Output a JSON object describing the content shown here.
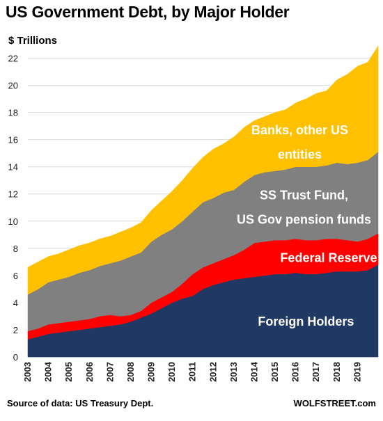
{
  "chart_data": {
    "type": "area",
    "stacked": true,
    "title": "US Government Debt, by Major Holder",
    "ylabel": "$ Trillions",
    "ylim": [
      0,
      23
    ],
    "yticks": [
      0,
      2,
      4,
      6,
      8,
      10,
      12,
      14,
      16,
      18,
      20,
      22
    ],
    "xlim": [
      2003.0,
      2020.0
    ],
    "xticks": [
      "2003",
      "2004",
      "2005",
      "2006",
      "2007",
      "2008",
      "2009",
      "2010",
      "2011",
      "2012",
      "2013",
      "2014",
      "2015",
      "2016",
      "2017",
      "2018",
      "2019"
    ],
    "grid": "horizontal",
    "x": [
      2003.0,
      2003.5,
      2004.0,
      2004.5,
      2005.0,
      2005.5,
      2006.0,
      2006.5,
      2007.0,
      2007.5,
      2008.0,
      2008.5,
      2009.0,
      2009.5,
      2010.0,
      2010.5,
      2011.0,
      2011.5,
      2012.0,
      2012.5,
      2013.0,
      2013.5,
      2014.0,
      2014.5,
      2015.0,
      2015.5,
      2016.0,
      2016.5,
      2017.0,
      2017.5,
      2018.0,
      2018.5,
      2019.0,
      2019.5,
      2020.0
    ],
    "series": [
      {
        "name": "Foreign Holders",
        "color": "#1f3864",
        "values": [
          1.3,
          1.5,
          1.7,
          1.8,
          1.9,
          2.0,
          2.1,
          2.2,
          2.3,
          2.4,
          2.6,
          2.9,
          3.2,
          3.6,
          4.0,
          4.3,
          4.5,
          5.0,
          5.3,
          5.5,
          5.7,
          5.8,
          5.9,
          6.0,
          6.1,
          6.1,
          6.2,
          6.1,
          6.1,
          6.2,
          6.3,
          6.3,
          6.3,
          6.4,
          6.8
        ]
      },
      {
        "name": "Federal Reserve",
        "color": "#ff0000",
        "values": [
          0.6,
          0.6,
          0.7,
          0.7,
          0.7,
          0.7,
          0.7,
          0.8,
          0.8,
          0.6,
          0.5,
          0.5,
          0.8,
          0.8,
          0.8,
          1.1,
          1.6,
          1.6,
          1.6,
          1.7,
          1.8,
          2.1,
          2.5,
          2.5,
          2.5,
          2.5,
          2.5,
          2.5,
          2.5,
          2.5,
          2.4,
          2.3,
          2.2,
          2.3,
          2.3
        ]
      },
      {
        "name": "SS Trust Fund, US Gov pension funds",
        "color": "#808080",
        "values": [
          2.7,
          2.9,
          3.1,
          3.2,
          3.3,
          3.5,
          3.6,
          3.7,
          3.8,
          4.1,
          4.3,
          4.3,
          4.5,
          4.6,
          4.6,
          4.6,
          4.6,
          4.8,
          4.8,
          4.9,
          4.8,
          5.0,
          5.0,
          5.1,
          5.1,
          5.2,
          5.3,
          5.4,
          5.4,
          5.4,
          5.6,
          5.6,
          5.8,
          5.8,
          6.0
        ]
      },
      {
        "name": "Banks, other US entities",
        "color": "#ffc000",
        "values": [
          2.0,
          2.0,
          1.9,
          1.9,
          2.0,
          2.0,
          2.0,
          2.0,
          2.0,
          2.1,
          2.1,
          2.2,
          2.3,
          2.5,
          2.8,
          3.0,
          3.2,
          3.3,
          3.6,
          3.6,
          3.9,
          4.0,
          4.0,
          4.1,
          4.3,
          4.4,
          4.7,
          5.0,
          5.4,
          5.5,
          6.1,
          6.6,
          7.1,
          7.2,
          7.8
        ]
      }
    ],
    "annotations": [
      {
        "series": "Banks, other US entities",
        "lines": [
          "Banks, other US",
          "entities"
        ],
        "color": "#ffffff"
      },
      {
        "series": "SS Trust Fund, US Gov pension funds",
        "lines": [
          "SS Trust Fund,",
          "US Gov pension funds"
        ],
        "color": "#ffffff"
      },
      {
        "series": "Federal Reserve",
        "lines": [
          "Federal Reserve"
        ],
        "color": "#ffffff"
      },
      {
        "series": "Foreign Holders",
        "lines": [
          "Foreign Holders"
        ],
        "color": "#ffffff"
      }
    ],
    "source": "Source of data: US Treasury Dept.",
    "credit": "WOLFSTREET.com"
  }
}
